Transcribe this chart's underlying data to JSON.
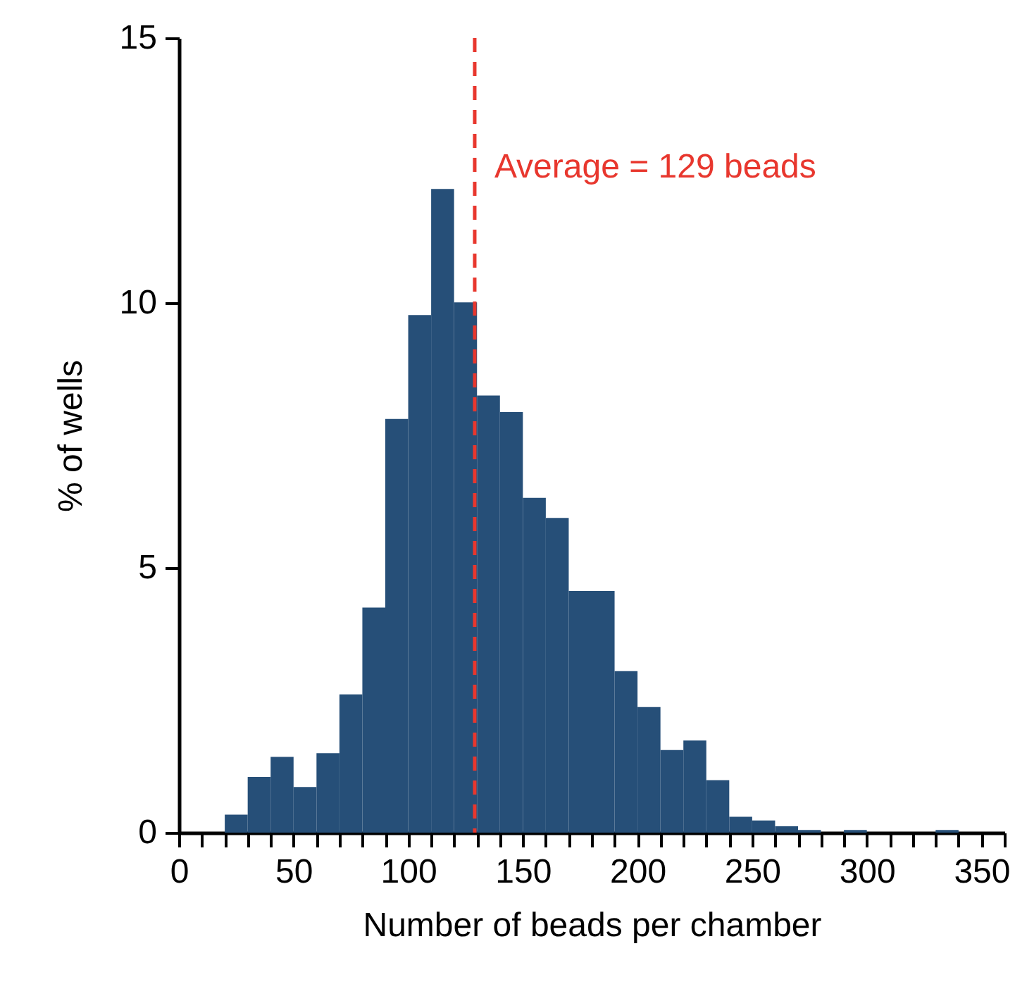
{
  "chart_data": {
    "type": "histogram",
    "xlabel": "Number of beads per chamber",
    "ylabel": "% of wells",
    "color": "#264f78",
    "bins": [
      20,
      30,
      40,
      50,
      60,
      70,
      80,
      90,
      100,
      110,
      120,
      130,
      140,
      150,
      160,
      170,
      180,
      190,
      200,
      210,
      220,
      230,
      240,
      250,
      260,
      270,
      280,
      290,
      300,
      310,
      320,
      330,
      340
    ],
    "values": [
      0.34,
      1.05,
      1.43,
      0.86,
      1.5,
      2.61,
      4.25,
      7.81,
      9.77,
      12.15,
      10.01,
      8.25,
      7.94,
      6.32,
      5.94,
      4.56,
      4.56,
      3.05,
      2.37,
      1.56,
      1.74,
      0.99,
      0.3,
      0.23,
      0.12,
      0.05,
      0,
      0.05,
      0,
      0,
      0,
      0.05
    ],
    "xlim": [
      0,
      360
    ],
    "xticks": [
      0,
      {
        "value": 10,
        "label": null
      },
      {
        "value": 20,
        "label": null
      },
      {
        "value": 30,
        "label": null
      },
      {
        "value": 40,
        "label": null
      },
      50,
      {
        "value": 60,
        "label": null
      },
      {
        "value": 70,
        "label": null
      },
      {
        "value": 80,
        "label": null
      },
      {
        "value": 90,
        "label": null
      },
      100,
      {
        "value": 110,
        "label": null
      },
      {
        "value": 120,
        "label": null
      },
      {
        "value": 130,
        "label": null
      },
      {
        "value": 140,
        "label": null
      },
      150,
      {
        "value": 160,
        "label": null
      },
      {
        "value": 170,
        "label": null
      },
      {
        "value": 180,
        "label": null
      },
      {
        "value": 190,
        "label": null
      },
      200,
      {
        "value": 210,
        "label": null
      },
      {
        "value": 220,
        "label": null
      },
      {
        "value": 230,
        "label": null
      },
      {
        "value": 240,
        "label": null
      },
      250,
      {
        "value": 260,
        "label": null
      },
      {
        "value": 270,
        "label": null
      },
      {
        "value": 280,
        "label": null
      },
      {
        "value": 290,
        "label": null
      },
      300,
      {
        "value": 310,
        "label": null
      },
      {
        "value": 320,
        "label": null
      },
      {
        "value": 330,
        "label": null
      },
      {
        "value": 340,
        "label": null
      },
      350,
      {
        "value": 360,
        "label": null
      }
    ],
    "ylim": [
      0,
      15
    ],
    "yticks": [
      0,
      5,
      10,
      15
    ],
    "ref_lines": [
      {
        "axis": "x",
        "value": 129,
        "label": "Average = 129 beads",
        "color": "#e8372e",
        "line_style": "dashed"
      }
    ]
  }
}
